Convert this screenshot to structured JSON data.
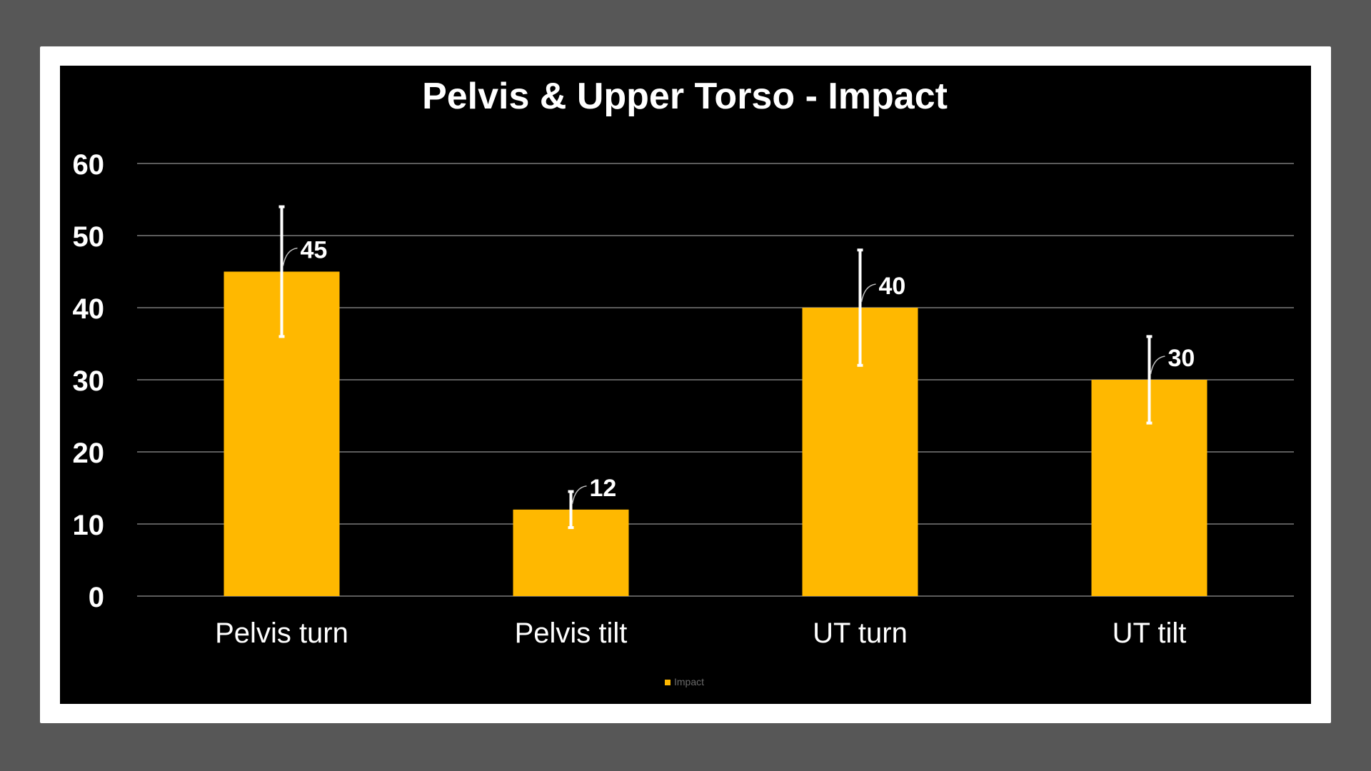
{
  "chart_data": {
    "type": "bar",
    "title": "Pelvis & Upper Torso - Impact",
    "categories": [
      "Pelvis turn",
      "Pelvis tilt",
      "UT turn",
      "UT tilt"
    ],
    "series": [
      {
        "name": "Impact",
        "values": [
          45,
          12,
          40,
          30
        ],
        "error_low": [
          36,
          9.5,
          32,
          24
        ],
        "error_high": [
          54,
          14.5,
          48,
          36
        ],
        "color": "#FFB800"
      }
    ],
    "data_labels": [
      "45",
      "12",
      "40",
      "30"
    ],
    "y_ticks": [
      "0",
      "10",
      "20",
      "30",
      "40",
      "50",
      "60"
    ],
    "ylim": [
      0,
      60
    ],
    "grid": true,
    "legend_position": "bottom",
    "colors": {
      "background": "#000000",
      "frame": "#ffffff",
      "gridline": "#7a7a7a",
      "text": "#ffffff",
      "error_bar": "#ffffff"
    }
  }
}
